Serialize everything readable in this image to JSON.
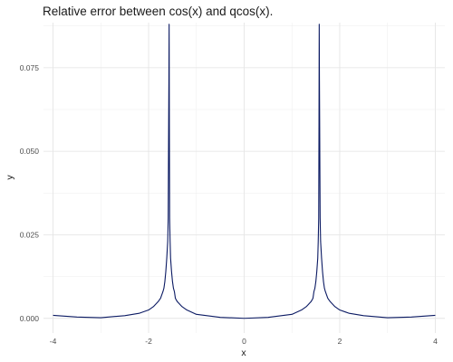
{
  "chart_data": {
    "type": "line",
    "title": "Relative error between cos(x) and qcos(x).",
    "xlabel": "x",
    "ylabel": "y",
    "xlim": [
      -4.2,
      4.2
    ],
    "ylim": [
      -0.0044,
      0.0885
    ],
    "x_ticks": [
      -4,
      -2,
      0,
      2,
      4
    ],
    "x_tick_labels": [
      "-4",
      "-2",
      "0",
      "2",
      "4"
    ],
    "y_ticks": [
      0.0,
      0.025,
      0.05,
      0.075
    ],
    "y_tick_labels": [
      "0.000",
      "0.025",
      "0.050",
      "0.075"
    ],
    "grid": true,
    "legend": "none",
    "series": [
      {
        "color": "#0b1a63",
        "x": [
          -4.0,
          -3.5,
          -3.0,
          -2.5,
          -2.2,
          -2.0,
          -1.9,
          -1.8,
          -1.75,
          -1.7,
          -1.68,
          -1.66,
          -1.64,
          -1.62,
          -1.6,
          -1.59,
          -1.58,
          -1.575,
          -1.5708,
          -1.566,
          -1.56,
          -1.55,
          -1.54,
          -1.52,
          -1.5,
          -1.48,
          -1.46,
          -1.44,
          -1.4,
          -1.3,
          -1.2,
          -1.0,
          -0.5,
          0.0,
          0.5,
          1.0,
          1.2,
          1.3,
          1.4,
          1.44,
          1.46,
          1.48,
          1.5,
          1.52,
          1.54,
          1.55,
          1.56,
          1.566,
          1.5708,
          1.575,
          1.58,
          1.59,
          1.6,
          1.62,
          1.64,
          1.66,
          1.68,
          1.7,
          1.75,
          1.8,
          1.9,
          2.0,
          2.2,
          2.5,
          3.0,
          3.5,
          4.0
        ],
        "y": [
          0.0009,
          0.0004,
          0.0002,
          0.0008,
          0.0015,
          0.0025,
          0.0035,
          0.005,
          0.006,
          0.008,
          0.009,
          0.011,
          0.014,
          0.018,
          0.023,
          0.03,
          0.058,
          0.072,
          0.088,
          0.058,
          0.03,
          0.023,
          0.018,
          0.014,
          0.011,
          0.009,
          0.008,
          0.006,
          0.005,
          0.0035,
          0.0025,
          0.0012,
          0.0003,
          0.0,
          0.0003,
          0.0012,
          0.0025,
          0.0035,
          0.005,
          0.006,
          0.008,
          0.009,
          0.011,
          0.014,
          0.018,
          0.023,
          0.03,
          0.058,
          0.088,
          0.072,
          0.058,
          0.03,
          0.023,
          0.018,
          0.014,
          0.011,
          0.009,
          0.008,
          0.006,
          0.005,
          0.0035,
          0.0025,
          0.0015,
          0.0008,
          0.0002,
          0.0004,
          0.0009
        ]
      }
    ]
  }
}
